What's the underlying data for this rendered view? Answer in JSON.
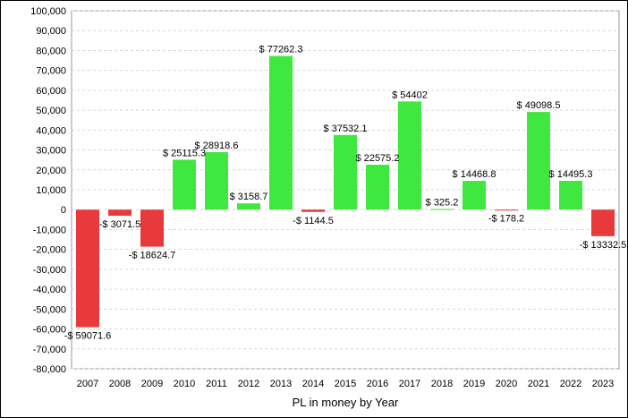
{
  "chart_data": {
    "type": "bar",
    "title": "",
    "xlabel": "PL in money by Year",
    "ylabel": "",
    "ylim": [
      -80000,
      100000
    ],
    "yticks": [
      100000,
      90000,
      80000,
      70000,
      60000,
      50000,
      40000,
      30000,
      20000,
      10000,
      0,
      -10000,
      -20000,
      -30000,
      -40000,
      -50000,
      -60000,
      -70000,
      -80000
    ],
    "ytick_labels": [
      "100,000",
      "90,000",
      "80,000",
      "70,000",
      "60,000",
      "50,000",
      "40,000",
      "30,000",
      "20,000",
      "10,000",
      "0",
      "-10,000",
      "-20,000",
      "-30,000",
      "-40,000",
      "-50,000",
      "-60,000",
      "-70,000",
      "-80,000"
    ],
    "grid": true,
    "categories": [
      "2007",
      "2008",
      "2009",
      "2010",
      "2011",
      "2012",
      "2013",
      "2014",
      "2015",
      "2016",
      "2017",
      "2018",
      "2019",
      "2020",
      "2021",
      "2022",
      "2023"
    ],
    "values": [
      -59071.6,
      -3071.5,
      -18624.7,
      25115.3,
      28918.6,
      3158.7,
      77262.3,
      -1144.5,
      37532.1,
      22575.2,
      54402,
      325.2,
      14468.8,
      -178.2,
      49098.5,
      14495.3,
      -13332.5
    ],
    "data_labels": [
      "-$ 59071.6",
      "-$ 3071.5",
      "-$ 18624.7",
      "$ 25115.3",
      "$ 28918.6",
      "$ 3158.7",
      "$ 77262.3",
      "-$ 1144.5",
      "$ 37532.1",
      "$ 22575.2",
      "$ 54402",
      "$ 325.2",
      "$ 14468.8",
      "-$ 178.2",
      "$ 49098.5",
      "$ 14495.3",
      "-$ 13332.5"
    ],
    "colors": {
      "positive": "#3fe83f",
      "negative": "#e83a3a",
      "grid": "#d6d6d6",
      "plot_border": "#9a9a9a"
    }
  }
}
